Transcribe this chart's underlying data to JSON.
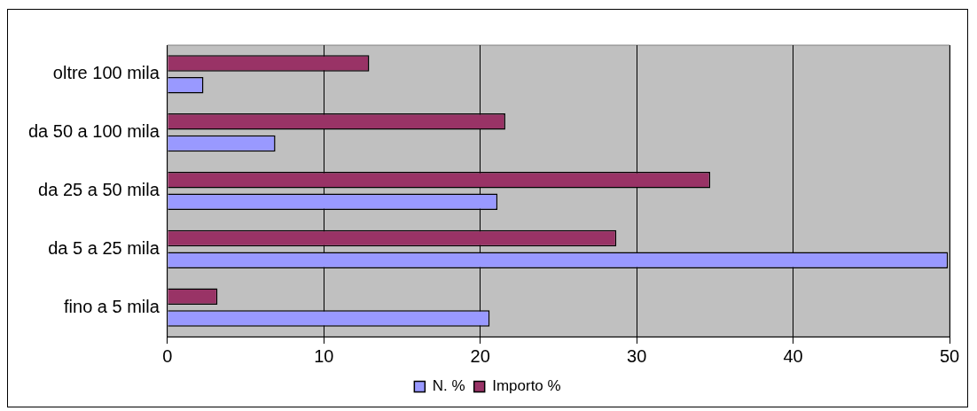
{
  "chart_data": {
    "type": "bar",
    "orientation": "horizontal",
    "categories": [
      "oltre 100 mila",
      "da 50 a 100 mila",
      "da 25 a 50 mila",
      "da 5 a 25 mila",
      "fino a 5 mila"
    ],
    "series": [
      {
        "name": "N. %",
        "color": "#9999ff",
        "values": [
          2.3,
          6.9,
          21.1,
          49.9,
          20.6
        ]
      },
      {
        "name": "Importo %",
        "color": "#993366",
        "values": [
          12.9,
          21.6,
          34.7,
          28.7,
          3.2
        ]
      }
    ],
    "xlim": [
      0,
      50
    ],
    "xticks": [
      0,
      10,
      20,
      30,
      40,
      50
    ],
    "grid": "x",
    "legend": "bottom"
  }
}
